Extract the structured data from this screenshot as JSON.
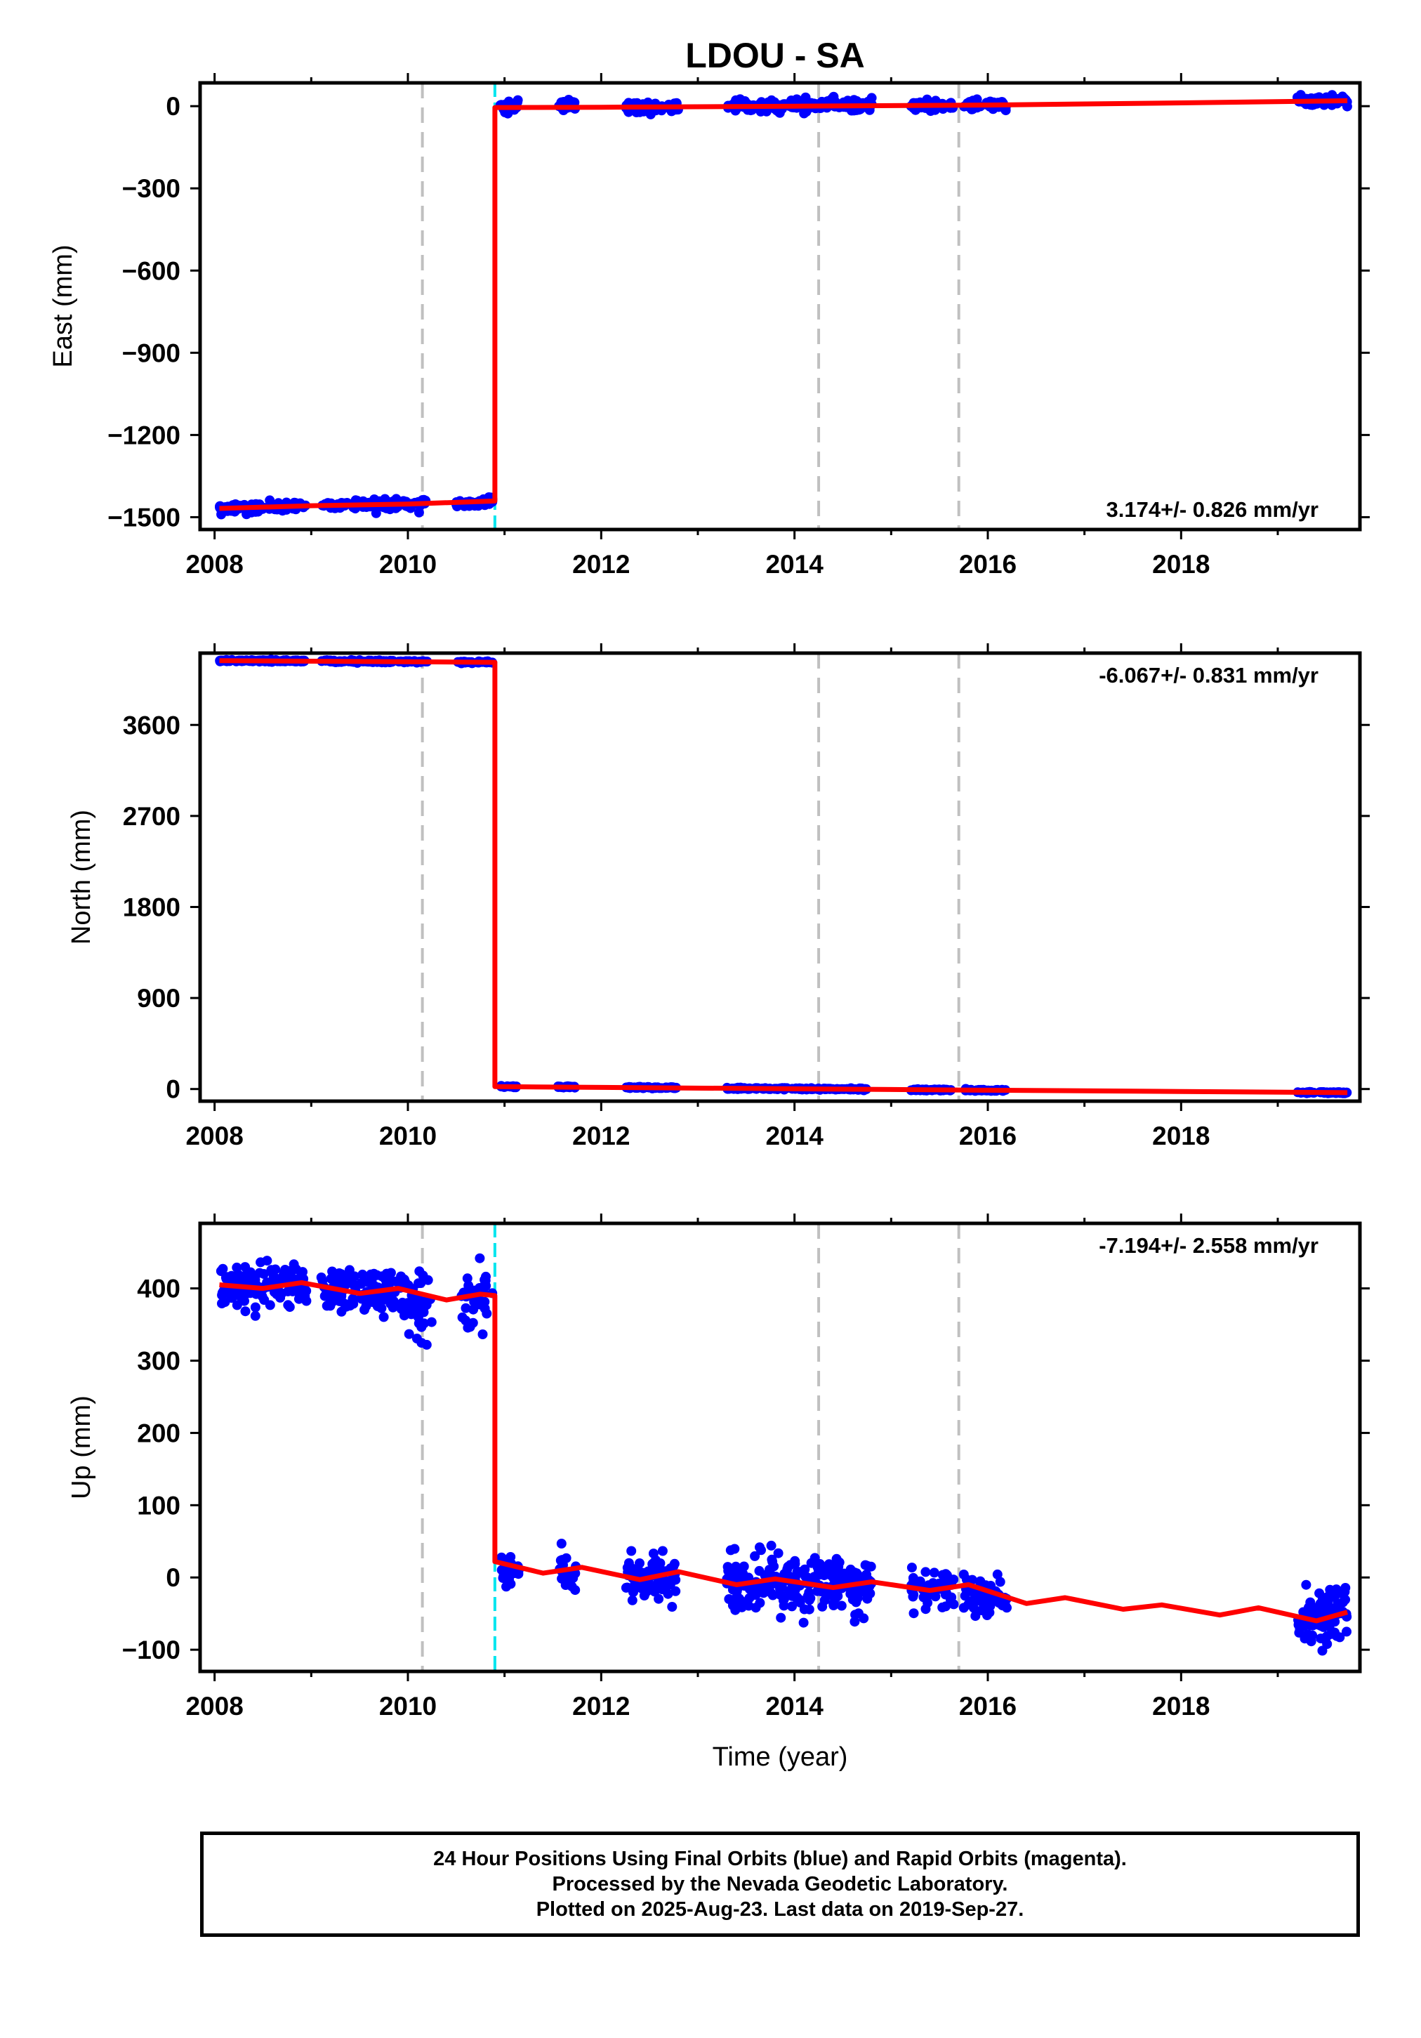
{
  "title": "LDOU - SA",
  "colors": {
    "data_points": "#0000ff",
    "model_line": "#ff0000",
    "grid_dash": "#c0c0c0",
    "equipment_change": "#00e5ee",
    "frame": "#000000"
  },
  "chart_data": [
    {
      "type": "scatter",
      "ylabel": "East (mm)",
      "xlabel": "",
      "xlim": [
        2007.85,
        2019.85
      ],
      "ylim": [
        -1545,
        85
      ],
      "xticks": [
        2008,
        2010,
        2012,
        2014,
        2016,
        2018
      ],
      "yticks": [
        0,
        -300,
        -600,
        -900,
        -1200,
        -1500
      ],
      "rate_label": "3.174+/- 0.826 mm/yr",
      "rate_position": "bottom-right",
      "dashed_gray_lines_x": [
        2010.15,
        2014.25,
        2015.7
      ],
      "cyan_lines_x": [
        2010.9
      ],
      "scatter_segments": [
        {
          "x": [
            2008.05,
            2008.95
          ],
          "y": [
            -1468,
            -1458
          ],
          "noise": 8,
          "count": 120
        },
        {
          "x": [
            2009.1,
            2009.9
          ],
          "y": [
            -1456,
            -1452
          ],
          "noise": 8,
          "count": 90
        },
        {
          "x": [
            2009.95,
            2010.2
          ],
          "y": [
            -1452,
            -1448
          ],
          "noise": 8,
          "count": 30
        },
        {
          "x": [
            2010.5,
            2010.88
          ],
          "y": [
            -1446,
            -1440
          ],
          "noise": 10,
          "count": 35
        },
        {
          "x": [
            2010.95,
            2011.15
          ],
          "y": [
            -5,
            -2
          ],
          "noise": 10,
          "count": 25
        },
        {
          "x": [
            2011.55,
            2011.75
          ],
          "y": [
            0,
            2
          ],
          "noise": 8,
          "count": 20
        },
        {
          "x": [
            2012.25,
            2012.8
          ],
          "y": [
            -6,
            0
          ],
          "noise": 10,
          "count": 60
        },
        {
          "x": [
            2013.3,
            2014.8
          ],
          "y": [
            2,
            5
          ],
          "noise": 12,
          "count": 160
        },
        {
          "x": [
            2015.2,
            2015.65
          ],
          "y": [
            2,
            3
          ],
          "noise": 8,
          "count": 50
        },
        {
          "x": [
            2015.75,
            2016.2
          ],
          "y": [
            4,
            6
          ],
          "noise": 10,
          "count": 50
        },
        {
          "x": [
            2019.2,
            2019.72
          ],
          "y": [
            22,
            20
          ],
          "noise": 10,
          "count": 60
        }
      ],
      "model_line": [
        [
          2008.05,
          -1468
        ],
        [
          2009.0,
          -1458
        ],
        [
          2010.0,
          -1452
        ],
        [
          2010.9,
          -1441
        ],
        [
          2010.9,
          -5
        ],
        [
          2012.0,
          -4
        ],
        [
          2014.0,
          0
        ],
        [
          2016.0,
          4
        ],
        [
          2018.0,
          12
        ],
        [
          2019.72,
          20
        ]
      ]
    },
    {
      "type": "scatter",
      "ylabel": "North (mm)",
      "xlabel": "",
      "xlim": [
        2007.85,
        2019.85
      ],
      "ylim": [
        -120,
        4310
      ],
      "xticks": [
        2008,
        2010,
        2012,
        2014,
        2016,
        2018
      ],
      "yticks": [
        3600,
        2700,
        1800,
        900,
        0
      ],
      "rate_label": "-6.067+/- 0.831 mm/yr",
      "rate_position": "top-right",
      "dashed_gray_lines_x": [
        2010.15,
        2014.25,
        2015.7
      ],
      "cyan_lines_x": [],
      "scatter_segments": [
        {
          "x": [
            2008.05,
            2008.95
          ],
          "y": [
            4235,
            4232
          ],
          "noise": 4,
          "count": 100
        },
        {
          "x": [
            2009.1,
            2010.2
          ],
          "y": [
            4230,
            4226
          ],
          "noise": 4,
          "count": 100
        },
        {
          "x": [
            2010.5,
            2010.88
          ],
          "y": [
            4222,
            4219
          ],
          "noise": 4,
          "count": 30
        },
        {
          "x": [
            2010.95,
            2011.15
          ],
          "y": [
            24,
            22
          ],
          "noise": 4,
          "count": 20
        },
        {
          "x": [
            2011.55,
            2011.75
          ],
          "y": [
            22,
            20
          ],
          "noise": 4,
          "count": 20
        },
        {
          "x": [
            2012.25,
            2012.8
          ],
          "y": [
            16,
            12
          ],
          "noise": 4,
          "count": 50
        },
        {
          "x": [
            2013.3,
            2014.8
          ],
          "y": [
            6,
            -2
          ],
          "noise": 4,
          "count": 120
        },
        {
          "x": [
            2015.2,
            2015.65
          ],
          "y": [
            -8,
            -10
          ],
          "noise": 4,
          "count": 40
        },
        {
          "x": [
            2015.75,
            2016.2
          ],
          "y": [
            -12,
            -14
          ],
          "noise": 4,
          "count": 40
        },
        {
          "x": [
            2019.2,
            2019.72
          ],
          "y": [
            -34,
            -36
          ],
          "noise": 4,
          "count": 50
        }
      ],
      "model_line": [
        [
          2008.05,
          4236
        ],
        [
          2010.9,
          4219
        ],
        [
          2010.9,
          24
        ],
        [
          2012.0,
          16
        ],
        [
          2014.0,
          2
        ],
        [
          2016.0,
          -12
        ],
        [
          2018.0,
          -24
        ],
        [
          2019.72,
          -36
        ]
      ]
    },
    {
      "type": "scatter",
      "ylabel": "Up (mm)",
      "xlabel": "Time (year)",
      "xlim": [
        2007.85,
        2019.85
      ],
      "ylim": [
        -130,
        490
      ],
      "xticks": [
        2008,
        2010,
        2012,
        2014,
        2016,
        2018
      ],
      "yticks": [
        400,
        300,
        200,
        100,
        0,
        -100
      ],
      "rate_label": "-7.194+/- 2.558 mm/yr",
      "rate_position": "top-right",
      "dashed_gray_lines_x": [
        2010.15,
        2014.25,
        2015.7
      ],
      "cyan_lines_x": [
        2010.9
      ],
      "scatter_segments": [
        {
          "x": [
            2008.05,
            2008.95
          ],
          "y": [
            404,
            408
          ],
          "noise": 14,
          "count": 150
        },
        {
          "x": [
            2009.1,
            2009.95
          ],
          "y": [
            397,
            398
          ],
          "noise": 14,
          "count": 120
        },
        {
          "x": [
            2009.95,
            2010.25
          ],
          "y": [
            385,
            365
          ],
          "noise": 22,
          "count": 45
        },
        {
          "x": [
            2010.55,
            2010.88
          ],
          "y": [
            392,
            392
          ],
          "noise": 20,
          "count": 35
        },
        {
          "x": [
            2010.95,
            2011.15
          ],
          "y": [
            14,
            8
          ],
          "noise": 12,
          "count": 25
        },
        {
          "x": [
            2011.55,
            2011.75
          ],
          "y": [
            8,
            10
          ],
          "noise": 12,
          "count": 20
        },
        {
          "x": [
            2012.25,
            2012.8
          ],
          "y": [
            0,
            5
          ],
          "noise": 14,
          "count": 70
        },
        {
          "x": [
            2013.3,
            2014.8
          ],
          "y": [
            -8,
            -10
          ],
          "noise": 20,
          "count": 220
        },
        {
          "x": [
            2015.2,
            2015.65
          ],
          "y": [
            -15,
            -14
          ],
          "noise": 12,
          "count": 50
        },
        {
          "x": [
            2015.75,
            2016.2
          ],
          "y": [
            -20,
            -32
          ],
          "noise": 14,
          "count": 60
        },
        {
          "x": [
            2019.2,
            2019.72
          ],
          "y": [
            -58,
            -48
          ],
          "noise": 22,
          "count": 90
        }
      ],
      "model_line": [
        [
          2008.05,
          405
        ],
        [
          2008.5,
          400
        ],
        [
          2008.9,
          408
        ],
        [
          2009.5,
          393
        ],
        [
          2009.9,
          400
        ],
        [
          2010.4,
          384
        ],
        [
          2010.75,
          392
        ],
        [
          2010.9,
          390
        ],
        [
          2010.9,
          22
        ],
        [
          2011.4,
          6
        ],
        [
          2011.8,
          14
        ],
        [
          2012.4,
          -3
        ],
        [
          2012.8,
          8
        ],
        [
          2013.4,
          -10
        ],
        [
          2013.8,
          -2
        ],
        [
          2014.4,
          -14
        ],
        [
          2014.8,
          -6
        ],
        [
          2015.4,
          -18
        ],
        [
          2015.8,
          -10
        ],
        [
          2016.4,
          -36
        ],
        [
          2016.8,
          -28
        ],
        [
          2017.4,
          -44
        ],
        [
          2017.8,
          -38
        ],
        [
          2018.4,
          -52
        ],
        [
          2018.8,
          -42
        ],
        [
          2019.4,
          -60
        ],
        [
          2019.72,
          -48
        ]
      ]
    }
  ],
  "footer": {
    "line1": "24 Hour Positions Using Final Orbits (blue) and Rapid Orbits (magenta).",
    "line2": "Processed by the Nevada Geodetic Laboratory.",
    "line3": "Plotted on 2025-Aug-23. Last data on 2019-Sep-27."
  }
}
